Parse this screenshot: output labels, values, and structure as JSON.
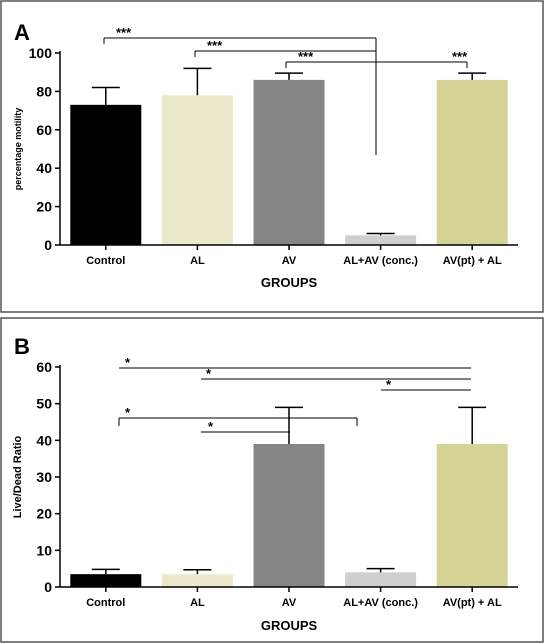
{
  "chart_data": [
    {
      "panel_label": "A",
      "type": "bar",
      "categories": [
        "Control",
        "AL",
        "AV",
        "AL+AV (conc.)",
        "AV(pt) + AL"
      ],
      "values": [
        73,
        78,
        86,
        5,
        86
      ],
      "errors": [
        9,
        14,
        3.5,
        1,
        3.5
      ],
      "colors": [
        "#000000",
        "#ebe8cc",
        "#858585",
        "#cfcfcf",
        "#d5d396"
      ],
      "xlabel": "GROUPS",
      "ylabel": "percentage motility",
      "ylim": [
        0,
        100
      ],
      "yticks": [
        0,
        20,
        40,
        60,
        80,
        100
      ],
      "significance": [
        {
          "from": "Control",
          "to": "AL+AV (conc.)",
          "label": "***"
        },
        {
          "from": "AL",
          "to": "AL+AV (conc.)",
          "label": "***"
        },
        {
          "from": "AV",
          "to": "AL+AV (conc.)",
          "label": "***"
        },
        {
          "from": "AL+AV (conc.)",
          "to": "AV(pt) + AL",
          "label": "***"
        }
      ]
    },
    {
      "panel_label": "B",
      "type": "bar",
      "categories": [
        "Control",
        "AL",
        "AV",
        "AL+AV (conc.)",
        "AV(pt) + AL"
      ],
      "values": [
        3.5,
        3.5,
        39,
        4,
        39
      ],
      "errors": [
        1.3,
        1.2,
        10,
        1,
        10
      ],
      "colors": [
        "#000000",
        "#ebe8cc",
        "#858585",
        "#cfcfcf",
        "#d5d396"
      ],
      "xlabel": "GROUPS",
      "ylabel": "Live/Dead Ratio",
      "ylim": [
        0,
        60
      ],
      "yticks": [
        0,
        10,
        20,
        30,
        40,
        50,
        60
      ],
      "significance": [
        {
          "from": "Control",
          "to": "AV(pt) + AL",
          "label": "*"
        },
        {
          "from": "AL",
          "to": "AV(pt) + AL",
          "label": "*"
        },
        {
          "from": "AL+AV (conc.)",
          "to": "AV(pt) + AL",
          "label": "*"
        },
        {
          "from": "Control",
          "to": "AL+AV (conc.)",
          "label": "*"
        },
        {
          "from": "AL",
          "to": "AV",
          "label": "*"
        }
      ]
    }
  ]
}
